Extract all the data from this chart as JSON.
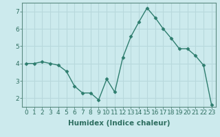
{
  "x": [
    0,
    1,
    2,
    3,
    4,
    5,
    6,
    7,
    8,
    9,
    10,
    11,
    12,
    13,
    14,
    15,
    16,
    17,
    18,
    19,
    20,
    21,
    22,
    23
  ],
  "y": [
    4.0,
    4.0,
    4.1,
    4.0,
    3.9,
    3.55,
    2.7,
    2.3,
    2.3,
    1.9,
    3.1,
    2.35,
    4.35,
    5.55,
    6.4,
    7.2,
    6.65,
    6.0,
    5.45,
    4.85,
    4.85,
    4.45,
    3.9,
    1.6
  ],
  "line_color": "#2e7d6e",
  "marker": "D",
  "marker_size": 2.5,
  "bg_color": "#cceaed",
  "grid_color": "#b8d8dc",
  "xlabel": "Humidex (Indice chaleur)",
  "xlim": [
    -0.5,
    23.5
  ],
  "ylim": [
    1.5,
    7.5
  ],
  "yticks": [
    2,
    3,
    4,
    5,
    6,
    7
  ],
  "xticks": [
    0,
    1,
    2,
    3,
    4,
    5,
    6,
    7,
    8,
    9,
    10,
    11,
    12,
    13,
    14,
    15,
    16,
    17,
    18,
    19,
    20,
    21,
    22,
    23
  ],
  "xtick_labels": [
    "0",
    "1",
    "2",
    "3",
    "4",
    "5",
    "6",
    "7",
    "8",
    "9",
    "10",
    "11",
    "12",
    "13",
    "14",
    "15",
    "16",
    "17",
    "18",
    "19",
    "20",
    "21",
    "22",
    "23"
  ],
  "spine_color": "#5a8a80",
  "tick_color": "#2e6e60",
  "label_fontsize": 7.5,
  "tick_fontsize": 6.5,
  "linewidth": 1.0
}
